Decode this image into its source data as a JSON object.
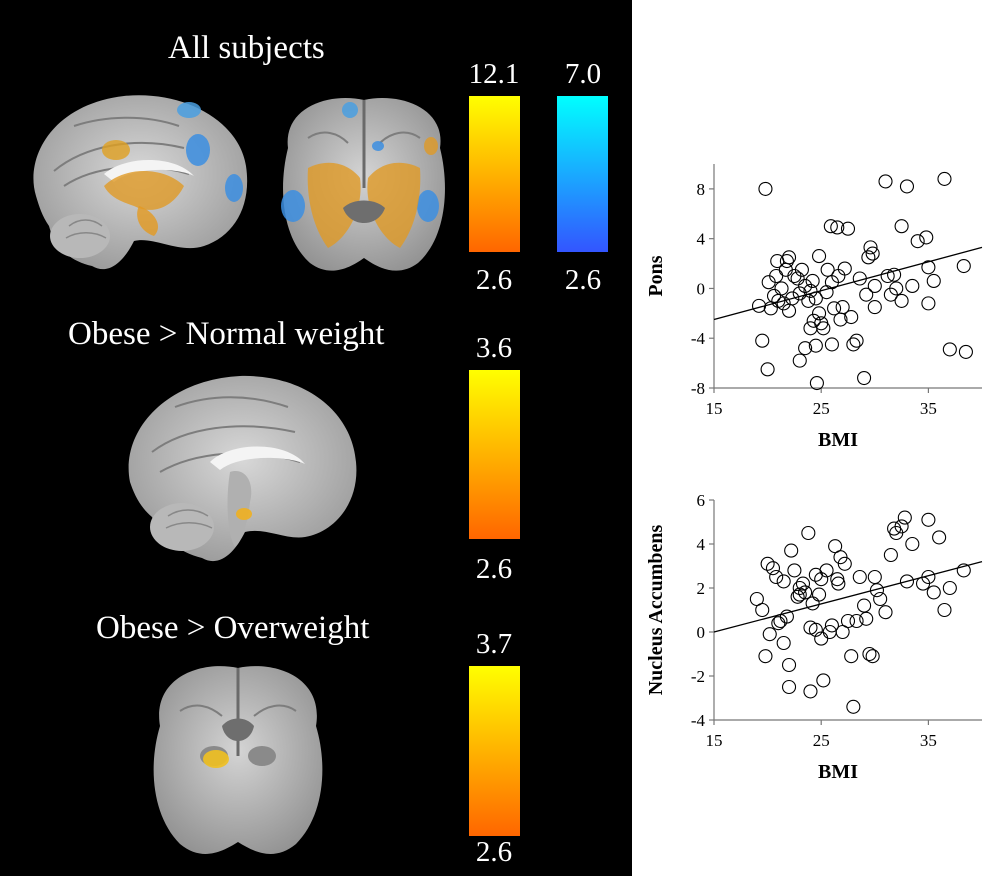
{
  "panels": {
    "all_subjects": {
      "title": "All subjects",
      "bars": [
        {
          "max": "12.1",
          "min": "2.6",
          "top_color": "#ffff00",
          "bottom_color": "#ff6600"
        },
        {
          "max": "7.0",
          "min": "2.6",
          "top_color": "#00ffff",
          "bottom_color": "#3355ff"
        }
      ]
    },
    "obese_vs_normal": {
      "title": "Obese > Normal weight",
      "bar": {
        "max": "3.6",
        "min": "2.6",
        "top_color": "#ffff00",
        "bottom_color": "#ff6600"
      }
    },
    "obese_vs_overweight": {
      "title": "Obese > Overweight",
      "bar": {
        "max": "3.7",
        "min": "2.6",
        "top_color": "#ffff00",
        "bottom_color": "#ff6600"
      }
    }
  },
  "chart_data": [
    {
      "type": "scatter",
      "xlabel": "BMI",
      "ylabel": "Pons",
      "xlim": [
        15,
        40
      ],
      "ylim": [
        -8,
        10
      ],
      "xticks": [
        15,
        25,
        35
      ],
      "yticks": [
        -8,
        -4,
        0,
        4,
        8
      ],
      "xtick_labels": [
        "15",
        "25",
        "35"
      ],
      "ytick_labels": [
        "-8",
        "-4",
        "0",
        "4",
        "8"
      ],
      "trendline": [
        [
          15,
          -2.5
        ],
        [
          40,
          3.3
        ]
      ],
      "points": [
        [
          19.8,
          8.0
        ],
        [
          19.2,
          -1.4
        ],
        [
          19.5,
          -4.2
        ],
        [
          20.0,
          -6.5
        ],
        [
          20.1,
          0.5
        ],
        [
          20.3,
          -1.6
        ],
        [
          20.6,
          -0.6
        ],
        [
          20.8,
          1.0
        ],
        [
          20.9,
          2.2
        ],
        [
          21.0,
          -1.0
        ],
        [
          21.3,
          0.0
        ],
        [
          21.5,
          -1.2
        ],
        [
          21.7,
          1.5
        ],
        [
          21.8,
          2.2
        ],
        [
          22.0,
          2.5
        ],
        [
          22.0,
          -1.8
        ],
        [
          22.3,
          -0.8
        ],
        [
          22.5,
          1.0
        ],
        [
          22.8,
          0.8
        ],
        [
          23.0,
          -0.4
        ],
        [
          23.0,
          -5.8
        ],
        [
          23.2,
          1.5
        ],
        [
          23.5,
          0.2
        ],
        [
          23.5,
          -4.8
        ],
        [
          23.8,
          -1.0
        ],
        [
          24.0,
          -0.2
        ],
        [
          24.0,
          -3.2
        ],
        [
          24.2,
          0.6
        ],
        [
          24.3,
          -2.6
        ],
        [
          24.5,
          -0.8
        ],
        [
          24.5,
          -4.6
        ],
        [
          24.6,
          -7.6
        ],
        [
          24.8,
          2.6
        ],
        [
          24.8,
          -2.0
        ],
        [
          25.0,
          -2.8
        ],
        [
          25.2,
          -3.2
        ],
        [
          25.5,
          -0.3
        ],
        [
          25.6,
          1.5
        ],
        [
          25.9,
          5.0
        ],
        [
          26.0,
          0.5
        ],
        [
          26.0,
          -4.5
        ],
        [
          26.2,
          -1.6
        ],
        [
          26.5,
          4.9
        ],
        [
          26.6,
          1.0
        ],
        [
          26.8,
          -2.5
        ],
        [
          27.0,
          -1.5
        ],
        [
          27.2,
          1.6
        ],
        [
          27.5,
          4.8
        ],
        [
          27.8,
          -2.3
        ],
        [
          28.0,
          -4.5
        ],
        [
          28.3,
          -4.2
        ],
        [
          28.6,
          0.8
        ],
        [
          29.0,
          -7.2
        ],
        [
          29.2,
          -0.5
        ],
        [
          29.4,
          2.5
        ],
        [
          29.6,
          3.3
        ],
        [
          29.8,
          2.8
        ],
        [
          30.0,
          -1.5
        ],
        [
          30.0,
          0.2
        ],
        [
          31.0,
          8.6
        ],
        [
          31.2,
          1.0
        ],
        [
          31.5,
          -0.5
        ],
        [
          31.8,
          1.1
        ],
        [
          32.0,
          0.0
        ],
        [
          32.5,
          -1.0
        ],
        [
          32.5,
          5.0
        ],
        [
          33.0,
          8.2
        ],
        [
          33.5,
          0.2
        ],
        [
          34.0,
          3.8
        ],
        [
          34.8,
          4.1
        ],
        [
          35.0,
          1.7
        ],
        [
          35.0,
          -1.2
        ],
        [
          35.5,
          0.6
        ],
        [
          36.5,
          8.8
        ],
        [
          37.0,
          -4.9
        ],
        [
          38.3,
          1.8
        ],
        [
          38.5,
          -5.1
        ]
      ]
    },
    {
      "type": "scatter",
      "xlabel": "BMI",
      "ylabel": "Nucleus Accumbens",
      "xlim": [
        15,
        40
      ],
      "ylim": [
        -4,
        6
      ],
      "xticks": [
        15,
        25,
        35
      ],
      "yticks": [
        -4,
        -2,
        0,
        2,
        4,
        6
      ],
      "xtick_labels": [
        "15",
        "25",
        "35"
      ],
      "ytick_labels": [
        "-4",
        "-2",
        "0",
        "2",
        "4",
        "6"
      ],
      "trendline": [
        [
          15,
          0.0
        ],
        [
          40,
          3.2
        ]
      ],
      "points": [
        [
          19.0,
          1.5
        ],
        [
          19.5,
          1.0
        ],
        [
          19.8,
          -1.1
        ],
        [
          20.0,
          3.1
        ],
        [
          20.2,
          -0.1
        ],
        [
          20.5,
          2.9
        ],
        [
          20.8,
          2.5
        ],
        [
          21.0,
          0.4
        ],
        [
          21.2,
          0.5
        ],
        [
          21.5,
          2.3
        ],
        [
          21.5,
          -0.5
        ],
        [
          21.8,
          0.7
        ],
        [
          22.0,
          -1.5
        ],
        [
          22.0,
          -2.5
        ],
        [
          22.2,
          3.7
        ],
        [
          22.5,
          2.8
        ],
        [
          22.8,
          1.6
        ],
        [
          23.0,
          2.0
        ],
        [
          23.0,
          1.7
        ],
        [
          23.3,
          2.2
        ],
        [
          23.5,
          1.8
        ],
        [
          23.8,
          4.5
        ],
        [
          24.0,
          0.2
        ],
        [
          24.0,
          -2.7
        ],
        [
          24.2,
          1.3
        ],
        [
          24.5,
          0.1
        ],
        [
          24.5,
          2.6
        ],
        [
          24.8,
          1.7
        ],
        [
          25.0,
          2.4
        ],
        [
          25.0,
          -0.3
        ],
        [
          25.2,
          -2.2
        ],
        [
          25.5,
          2.8
        ],
        [
          25.8,
          0.0
        ],
        [
          26.0,
          0.3
        ],
        [
          26.3,
          3.9
        ],
        [
          26.5,
          2.4
        ],
        [
          26.6,
          2.2
        ],
        [
          26.8,
          3.4
        ],
        [
          27.0,
          0.0
        ],
        [
          27.2,
          3.1
        ],
        [
          27.5,
          0.5
        ],
        [
          27.8,
          -1.1
        ],
        [
          28.0,
          -3.4
        ],
        [
          28.3,
          0.5
        ],
        [
          28.6,
          2.5
        ],
        [
          29.0,
          1.2
        ],
        [
          29.2,
          0.6
        ],
        [
          29.5,
          -1.0
        ],
        [
          29.8,
          -1.1
        ],
        [
          30.0,
          2.5
        ],
        [
          30.2,
          1.9
        ],
        [
          30.5,
          1.5
        ],
        [
          31.0,
          0.9
        ],
        [
          31.5,
          3.5
        ],
        [
          31.8,
          4.7
        ],
        [
          32.0,
          4.5
        ],
        [
          32.5,
          4.8
        ],
        [
          32.8,
          5.2
        ],
        [
          33.0,
          2.3
        ],
        [
          33.5,
          4.0
        ],
        [
          34.5,
          2.2
        ],
        [
          35.0,
          5.1
        ],
        [
          35.0,
          2.5
        ],
        [
          35.5,
          1.8
        ],
        [
          36.0,
          4.3
        ],
        [
          36.5,
          1.0
        ],
        [
          37.0,
          2.0
        ],
        [
          38.3,
          2.8
        ]
      ]
    }
  ]
}
